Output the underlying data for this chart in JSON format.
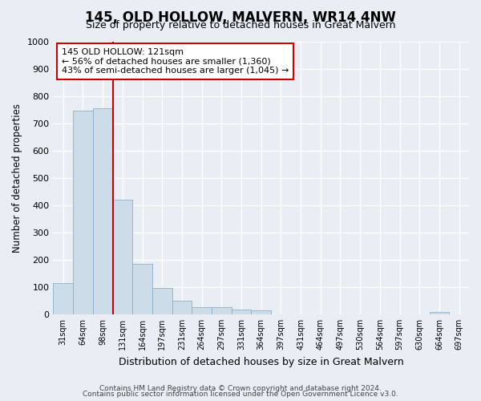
{
  "title": "145, OLD HOLLOW, MALVERN, WR14 4NW",
  "subtitle": "Size of property relative to detached houses in Great Malvern",
  "xlabel": "Distribution of detached houses by size in Great Malvern",
  "ylabel": "Number of detached properties",
  "footnote1": "Contains HM Land Registry data © Crown copyright and database right 2024.",
  "footnote2": "Contains public sector information licensed under the Open Government Licence v3.0.",
  "bar_labels": [
    "31sqm",
    "64sqm",
    "98sqm",
    "131sqm",
    "164sqm",
    "197sqm",
    "231sqm",
    "264sqm",
    "297sqm",
    "331sqm",
    "364sqm",
    "397sqm",
    "431sqm",
    "464sqm",
    "497sqm",
    "530sqm",
    "564sqm",
    "597sqm",
    "630sqm",
    "664sqm",
    "697sqm"
  ],
  "bar_values": [
    115,
    745,
    755,
    420,
    185,
    97,
    50,
    25,
    25,
    18,
    15,
    0,
    0,
    0,
    0,
    0,
    0,
    0,
    0,
    10,
    0
  ],
  "bar_color": "#ccdce8",
  "bar_edgecolor": "#8ab0cc",
  "vline_color": "#cc0000",
  "vline_pos": 2.5,
  "ylim": [
    0,
    1000
  ],
  "yticks": [
    0,
    100,
    200,
    300,
    400,
    500,
    600,
    700,
    800,
    900,
    1000
  ],
  "annotation_text": "145 OLD HOLLOW: 121sqm\n← 56% of detached houses are smaller (1,360)\n43% of semi-detached houses are larger (1,045) →",
  "bg_color": "#e8eef4",
  "plot_bg_color": "#e8eef4",
  "grid_color": "#ffffff",
  "title_fontsize": 12,
  "subtitle_fontsize": 9,
  "xlabel_fontsize": 9,
  "ylabel_fontsize": 8.5
}
